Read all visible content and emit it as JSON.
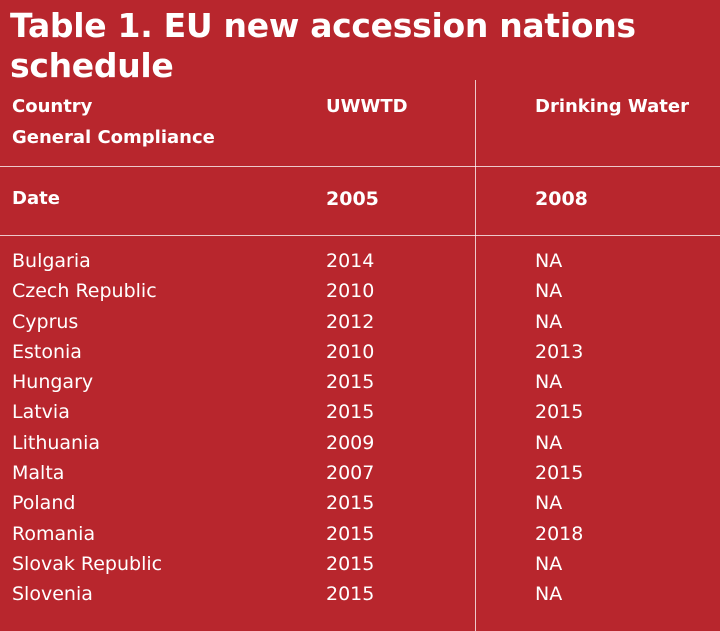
{
  "title": "Table 1. EU new accession nations schedule",
  "headers": {
    "country_line1": "Country",
    "country_line2": "General Compliance",
    "uwwtd": "UWWTD",
    "drinking_water": "Drinking Water"
  },
  "date_row": {
    "label": "Date",
    "uwwtd": "2005",
    "drinking_water": "2008"
  },
  "rows": [
    {
      "country": "Bulgaria",
      "uwwtd": "2014",
      "drinking_water": "NA"
    },
    {
      "country": "Czech Republic",
      "uwwtd": "2010",
      "drinking_water": "NA"
    },
    {
      "country": "Cyprus",
      "uwwtd": "2012",
      "drinking_water": "NA"
    },
    {
      "country": "Estonia",
      "uwwtd": "2010",
      "drinking_water": "2013"
    },
    {
      "country": "Hungary",
      "uwwtd": "2015",
      "drinking_water": "NA"
    },
    {
      "country": "Latvia",
      "uwwtd": "2015",
      "drinking_water": "2015"
    },
    {
      "country": "Lithuania",
      "uwwtd": "2009",
      "drinking_water": "NA"
    },
    {
      "country": "Malta",
      "uwwtd": "2007",
      "drinking_water": "2015"
    },
    {
      "country": "Poland",
      "uwwtd": "2015",
      "drinking_water": "NA"
    },
    {
      "country": "Romania",
      "uwwtd": "2015",
      "drinking_water": "2018"
    },
    {
      "country": "Slovak Republic",
      "uwwtd": "2015",
      "drinking_water": "NA"
    },
    {
      "country": "Slovenia",
      "uwwtd": "2015",
      "drinking_water": "NA"
    }
  ],
  "colors": {
    "background": "#b8262d",
    "text": "#ffffff"
  }
}
